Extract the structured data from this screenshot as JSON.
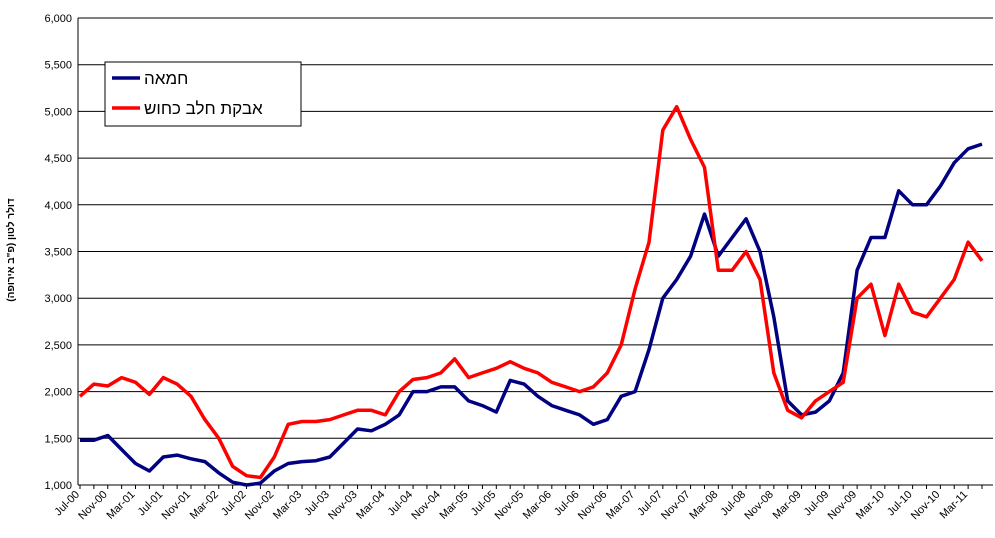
{
  "chart_data": {
    "type": "line",
    "y_label": "דולר לטון (פ\"ב אירופה)",
    "categories": [
      "Jul-00",
      null,
      "Nov-00",
      null,
      "Mar-01",
      null,
      "Jul-01",
      null,
      "Nov-01",
      null,
      "Mar-02",
      null,
      "Jul-02",
      null,
      "Nov-02",
      null,
      "Mar-03",
      null,
      "Jul-03",
      null,
      "Nov-03",
      null,
      "Mar-04",
      null,
      "Jul-04",
      null,
      "Nov-04",
      null,
      "Mar-05",
      null,
      "Jul-05",
      null,
      "Nov-05",
      null,
      "Mar-06",
      null,
      "Jul-06",
      null,
      "Nov-06",
      null,
      "Mar-07",
      null,
      "Jul-07",
      null,
      "Nov-07",
      null,
      "Mar-08",
      null,
      "Jul-08",
      null,
      "Nov-08",
      null,
      "Mar-09",
      null,
      "Jul-09",
      null,
      "Nov-09",
      null,
      "Mar-10",
      null,
      "Jul-10",
      null,
      "Nov-10",
      null,
      "Mar-11",
      null
    ],
    "series": [
      {
        "name": "חמאה",
        "color": "#000080",
        "values": [
          1480,
          1480,
          1530,
          1380,
          1230,
          1150,
          1300,
          1320,
          1280,
          1250,
          1130,
          1030,
          1000,
          1020,
          1150,
          1230,
          1250,
          1260,
          1300,
          1450,
          1600,
          1580,
          1650,
          1750,
          2000,
          2000,
          2050,
          2050,
          1900,
          1850,
          1780,
          2120,
          2080,
          1950,
          1850,
          1800,
          1750,
          1650,
          1700,
          1950,
          2000,
          2450,
          3000,
          3200,
          3450,
          3900,
          3450,
          3650,
          3850,
          3500,
          2800,
          1900,
          1750,
          1780,
          1900,
          2200,
          3300,
          3650,
          3650,
          4150,
          4000,
          4000,
          4200,
          4450,
          4600,
          4650
        ]
      },
      {
        "name": "אבקת חלב כחוש",
        "color": "#ff0000",
        "values": [
          1950,
          2080,
          2060,
          2150,
          2100,
          1970,
          2150,
          2080,
          1950,
          1700,
          1500,
          1200,
          1100,
          1080,
          1300,
          1650,
          1680,
          1680,
          1700,
          1750,
          1800,
          1800,
          1750,
          2000,
          2130,
          2150,
          2200,
          2350,
          2150,
          2200,
          2250,
          2320,
          2250,
          2200,
          2100,
          2050,
          2000,
          2050,
          2200,
          2500,
          3100,
          3600,
          4800,
          5050,
          4700,
          4400,
          3300,
          3300,
          3500,
          3200,
          2200,
          1800,
          1720,
          1900,
          2000,
          2100,
          3000,
          3150,
          2600,
          3150,
          2850,
          2800,
          3000,
          3200,
          3600,
          3400
        ]
      }
    ],
    "ylim": [
      1000,
      6000
    ],
    "yticks": [
      {
        "value": 1000,
        "label": "1,000"
      },
      {
        "value": 1500,
        "label": "1,500"
      },
      {
        "value": 2000,
        "label": "2,000"
      },
      {
        "value": 2500,
        "label": "2,500"
      },
      {
        "value": 3000,
        "label": "3,000"
      },
      {
        "value": 3500,
        "label": "3,500"
      },
      {
        "value": 4000,
        "label": "4,000"
      },
      {
        "value": 4500,
        "label": "4,500"
      },
      {
        "value": 5000,
        "label": "5,000"
      },
      {
        "value": 5500,
        "label": "5,500"
      },
      {
        "value": 6000,
        "label": "6,000"
      }
    ],
    "grid": true
  }
}
